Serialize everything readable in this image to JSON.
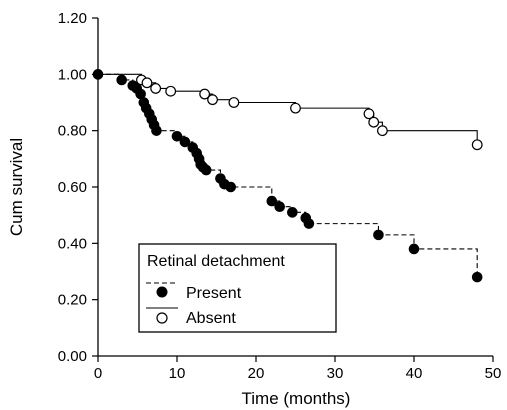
{
  "chart_data": {
    "type": "line",
    "xlabel": "Time (months)",
    "ylabel": "Cum survival",
    "xlim": [
      0,
      50
    ],
    "ylim": [
      0,
      1.2
    ],
    "x_ticks": [
      "0",
      "10",
      "20",
      "30",
      "40",
      "50"
    ],
    "y_ticks": [
      "0.00",
      "0.20",
      "0.40",
      "0.60",
      "0.80",
      "1.00",
      "1.20"
    ],
    "grid": false,
    "legend": {
      "title": "Retinal detachment",
      "placement": "bottom-left"
    },
    "series": [
      {
        "name": "Present",
        "style": "dashed",
        "marker": "filled",
        "color": "#000000",
        "steps": [
          [
            0,
            1.0
          ],
          [
            3,
            0.98
          ],
          [
            4.4,
            0.96
          ],
          [
            4.9,
            0.95
          ],
          [
            5.4,
            0.93
          ],
          [
            5.8,
            0.9
          ],
          [
            6.1,
            0.88
          ],
          [
            6.5,
            0.86
          ],
          [
            6.8,
            0.84
          ],
          [
            7.1,
            0.82
          ],
          [
            7.4,
            0.8
          ],
          [
            10,
            0.78
          ],
          [
            11,
            0.76
          ],
          [
            12,
            0.74
          ],
          [
            12.5,
            0.72
          ],
          [
            12.8,
            0.7
          ],
          [
            13,
            0.68
          ],
          [
            13.3,
            0.67
          ],
          [
            13.7,
            0.66
          ],
          [
            15.5,
            0.63
          ],
          [
            16,
            0.61
          ],
          [
            16.8,
            0.6
          ],
          [
            22,
            0.55
          ],
          [
            23,
            0.53
          ],
          [
            24.6,
            0.51
          ],
          [
            26.3,
            0.49
          ],
          [
            26.7,
            0.47
          ],
          [
            35.5,
            0.43
          ],
          [
            40,
            0.38
          ],
          [
            48,
            0.28
          ]
        ],
        "markers": [
          [
            0,
            1.0
          ],
          [
            3,
            0.98
          ],
          [
            4.4,
            0.96
          ],
          [
            4.9,
            0.95
          ],
          [
            5.4,
            0.93
          ],
          [
            5.8,
            0.9
          ],
          [
            6.1,
            0.88
          ],
          [
            6.5,
            0.86
          ],
          [
            6.8,
            0.84
          ],
          [
            7.1,
            0.82
          ],
          [
            7.4,
            0.8
          ],
          [
            10,
            0.78
          ],
          [
            11,
            0.76
          ],
          [
            12,
            0.74
          ],
          [
            12.5,
            0.72
          ],
          [
            12.8,
            0.7
          ],
          [
            13,
            0.68
          ],
          [
            13.3,
            0.67
          ],
          [
            13.7,
            0.66
          ],
          [
            15.5,
            0.63
          ],
          [
            16,
            0.61
          ],
          [
            16.8,
            0.6
          ],
          [
            22,
            0.55
          ],
          [
            23,
            0.53
          ],
          [
            24.6,
            0.51
          ],
          [
            26.3,
            0.49
          ],
          [
            26.7,
            0.47
          ],
          [
            35.5,
            0.43
          ],
          [
            40,
            0.38
          ],
          [
            48,
            0.28
          ]
        ]
      },
      {
        "name": "Absent",
        "style": "solid",
        "marker": "open",
        "color": "#000000",
        "steps": [
          [
            0,
            1.0
          ],
          [
            5.5,
            0.98
          ],
          [
            6.2,
            0.97
          ],
          [
            7.3,
            0.95
          ],
          [
            9.2,
            0.94
          ],
          [
            13.5,
            0.93
          ],
          [
            14.5,
            0.91
          ],
          [
            17.2,
            0.9
          ],
          [
            25,
            0.88
          ],
          [
            34.3,
            0.86
          ],
          [
            34.9,
            0.83
          ],
          [
            36,
            0.8
          ],
          [
            48,
            0.75
          ]
        ],
        "markers": [
          [
            5.5,
            0.98
          ],
          [
            6.2,
            0.97
          ],
          [
            7.3,
            0.95
          ],
          [
            9.2,
            0.94
          ],
          [
            13.5,
            0.93
          ],
          [
            14.5,
            0.91
          ],
          [
            17.2,
            0.9
          ],
          [
            25,
            0.88
          ],
          [
            34.3,
            0.86
          ],
          [
            34.9,
            0.83
          ],
          [
            36,
            0.8
          ],
          [
            48,
            0.75
          ]
        ]
      }
    ]
  }
}
